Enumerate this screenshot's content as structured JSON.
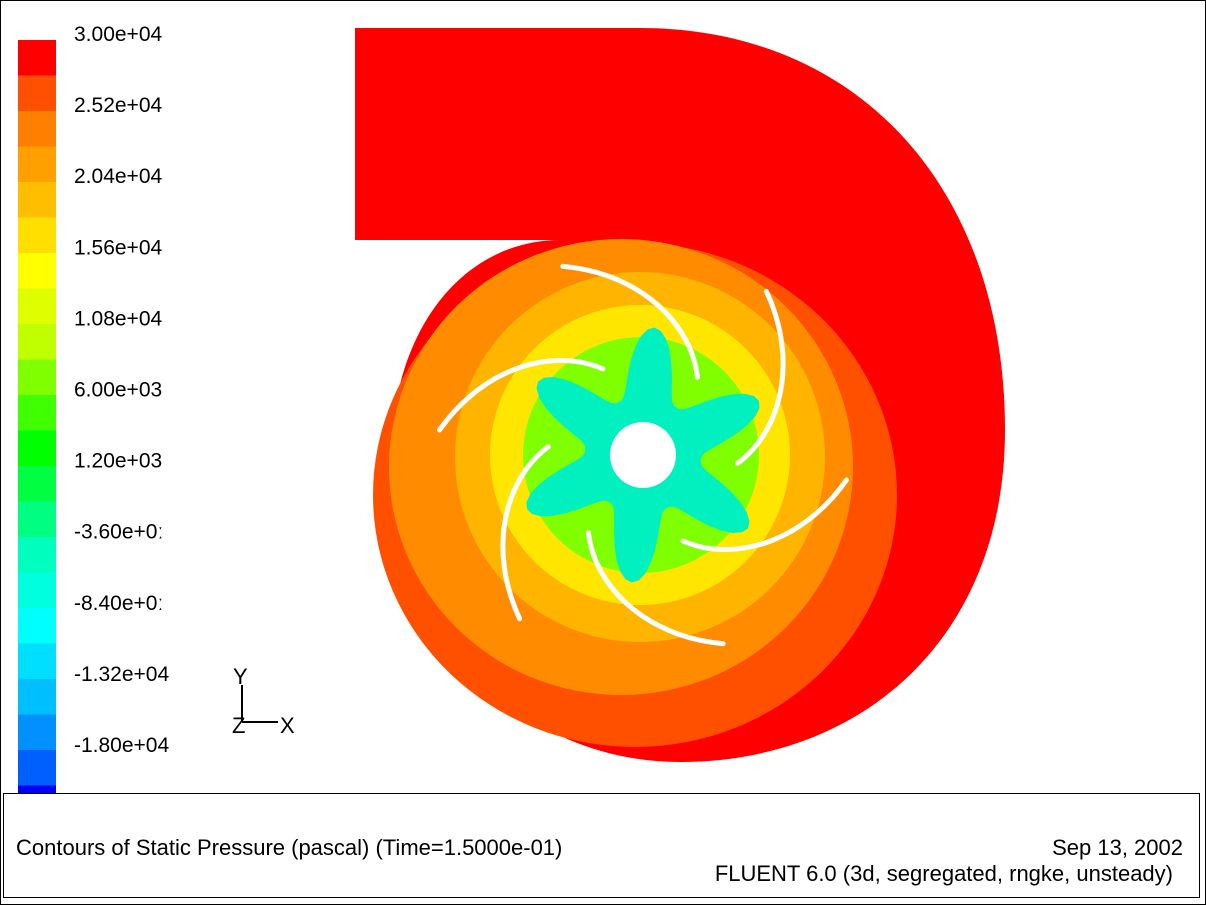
{
  "figure": {
    "title": "Contours of Static Pressure (pascal)  (Time=1.5000e-01)",
    "date": "Sep 13, 2002",
    "solver": "FLUENT 6.0 (3d, segregated, rngke, unsteady)"
  },
  "legend": {
    "labels": [
      "3.00e+04",
      "2.52e+04",
      "2.04e+04",
      "1.56e+04",
      "1.08e+04",
      "6.00e+03",
      "1.20e+03",
      "-3.60e+0ː",
      "-8.40e+0ː",
      "-1.32e+04",
      "-1.80e+04"
    ],
    "colors": [
      "#ff0000",
      "#ff4f00",
      "#ff8000",
      "#ff9f00",
      "#ffbf00",
      "#ffdf00",
      "#ffff00",
      "#dfff00",
      "#bfff00",
      "#80ff00",
      "#40ff00",
      "#00ff00",
      "#00ff40",
      "#00ff80",
      "#00ffbf",
      "#00ffdf",
      "#00ffff",
      "#00dfff",
      "#00bfff",
      "#0090ff",
      "#0060ff",
      "#0000ff"
    ]
  },
  "axes": {
    "y": "Y",
    "z": "Z",
    "x": "X"
  },
  "colors": {
    "volute": "#ff0000",
    "outer_ring": "#ff5000",
    "mid_ring": "#ff8c00",
    "inner_ring": "#ffb400",
    "yellow_ring": "#ffe600",
    "green_ring": "#80ff00",
    "hub_region": "#00f0c0",
    "blade": "#ffffff"
  }
}
